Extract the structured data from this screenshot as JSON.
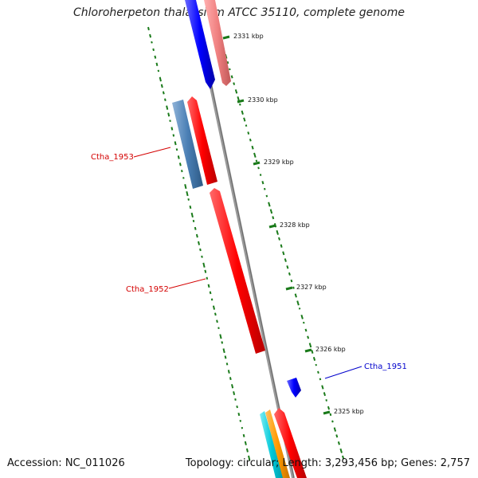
{
  "title": "Chloroherpeton thalassium ATCC 35110, complete genome",
  "footer": {
    "accession": "Accession: NC_011026",
    "summary": "Topology: circular; Length: 3,293,456 bp; Genes: 2,757"
  },
  "ticks": [
    {
      "label": "2331 kbp",
      "kbp": 2331
    },
    {
      "label": "2330 kbp",
      "kbp": 2330
    },
    {
      "label": "2329 kbp",
      "kbp": 2329
    },
    {
      "label": "2328 kbp",
      "kbp": 2328
    },
    {
      "label": "2327 kbp",
      "kbp": 2327
    },
    {
      "label": "2326 kbp",
      "kbp": 2326
    },
    {
      "label": "2325 kbp",
      "kbp": 2325
    }
  ],
  "gene_labels": [
    {
      "text": "Ctha_1953",
      "color": "#d40000"
    },
    {
      "text": "Ctha_1952",
      "color": "#d40000"
    },
    {
      "text": "Ctha_1951",
      "color": "#0000cc"
    }
  ],
  "colors": {
    "forward": "#ff0000",
    "reverse": "#0000ff",
    "pink": "#f08080",
    "steel": "#4a7fb5",
    "cyan": "#00c8d8",
    "orange": "#ff9900",
    "backbone": "#888888",
    "gc_dots": "#1a7a1a"
  }
}
